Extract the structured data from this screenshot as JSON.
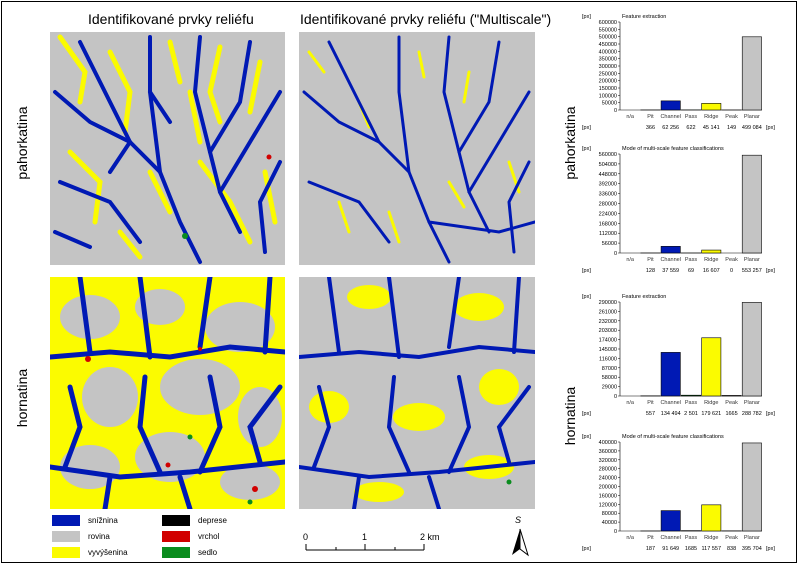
{
  "titles": {
    "col1": "Identifikované prvky reliéfu",
    "col2": "Identifikované prvky reliéfu (\"Multiscale\")"
  },
  "rows": {
    "row1": "pahorkatina",
    "row2": "hornatina"
  },
  "legend": [
    {
      "label": "snížnina",
      "color": "#0019b4"
    },
    {
      "label": "rovina",
      "color": "#c4c4c4"
    },
    {
      "label": "vyvýšenina",
      "color": "#fbfb00"
    },
    {
      "label": "deprese",
      "color": "#000000"
    },
    {
      "label": "vrchol",
      "color": "#d10000"
    },
    {
      "label": "sedlo",
      "color": "#0a8c1e"
    }
  ],
  "scale": {
    "ticks": [
      "0",
      "1",
      "2 km"
    ],
    "north": "S"
  },
  "colors": {
    "channel": "#0019b4",
    "ridge": "#fbfb00",
    "planar": "#c4c4c4",
    "peak": "#d10000",
    "pass": "#0a8c1e",
    "pit": "#000000"
  },
  "chart_data": [
    {
      "type": "bar",
      "title": "Feature extraction",
      "unit": "[px]",
      "categories": [
        "n/a",
        "Pit",
        "Channel",
        "Pass",
        "Ridge",
        "Peak",
        "Planar"
      ],
      "values": [
        0,
        366,
        62256,
        622,
        45141,
        149,
        499084
      ],
      "value_labels": [
        "",
        "366",
        "62 256",
        "622",
        "45 141",
        "149",
        "499 084"
      ],
      "yticks": [
        0,
        50000,
        100000,
        150000,
        200000,
        250000,
        300000,
        350000,
        400000,
        450000,
        500000,
        550000,
        600000
      ],
      "ylim": [
        0,
        600000
      ]
    },
    {
      "type": "bar",
      "title": "Mode of multi-scale feature classifications",
      "unit": "[px]",
      "categories": [
        "n/a",
        "Pit",
        "Channel",
        "Pass",
        "Ridge",
        "Peak",
        "Planar"
      ],
      "values": [
        0,
        128,
        37559,
        69,
        16607,
        0,
        553257
      ],
      "value_labels": [
        "",
        "128",
        "37 559",
        "69",
        "16 607",
        "0",
        "553 257"
      ],
      "yticks": [
        0,
        56000,
        112000,
        168000,
        224000,
        280000,
        336000,
        392000,
        448000,
        504000,
        560000
      ],
      "ylim": [
        0,
        560000
      ]
    },
    {
      "type": "bar",
      "title": "Feature extraction",
      "unit": "[px]",
      "categories": [
        "n/a",
        "Pit",
        "Channel",
        "Pass",
        "Ridge",
        "Peak",
        "Planar"
      ],
      "values": [
        0,
        557,
        134494,
        2501,
        179621,
        1665,
        288782
      ],
      "value_labels": [
        "",
        "557",
        "134 494",
        "2 501",
        "179 621",
        "1665",
        "288 782"
      ],
      "yticks": [
        0,
        29000,
        58000,
        87000,
        116000,
        145000,
        174000,
        203000,
        232000,
        261000,
        290000
      ],
      "ylim": [
        0,
        290000
      ]
    },
    {
      "type": "bar",
      "title": "Mode of multi-scale feature classifications",
      "unit": "[px]",
      "categories": [
        "n/a",
        "Pit",
        "Channel",
        "Pass",
        "Ridge",
        "Peak",
        "Planar"
      ],
      "values": [
        0,
        187,
        91649,
        1685,
        117557,
        838,
        395704
      ],
      "value_labels": [
        "",
        "187",
        "91 649",
        "1685",
        "117 557",
        "838",
        "395 704"
      ],
      "yticks": [
        0,
        40000,
        80000,
        120000,
        160000,
        200000,
        240000,
        280000,
        320000,
        360000,
        400000
      ],
      "ylim": [
        0,
        400000
      ]
    }
  ]
}
